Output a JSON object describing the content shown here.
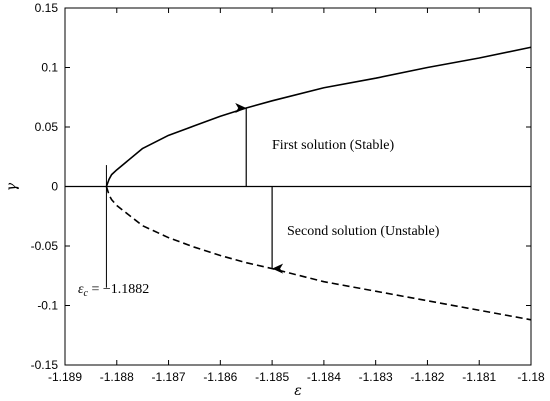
{
  "chart_data": {
    "type": "line",
    "xlabel": "ε",
    "ylabel": "γ",
    "xlim": [
      -1.189,
      -1.18
    ],
    "ylim": [
      -0.15,
      0.15
    ],
    "x_ticks": [
      "-1.189",
      "-1.188",
      "-1.187",
      "-1.186",
      "-1.185",
      "-1.184",
      "-1.183",
      "-1.182",
      "-1.181",
      "-1.18"
    ],
    "y_ticks": [
      "-0.15",
      "-0.1",
      "-0.05",
      "0",
      "0.05",
      "0.1",
      "0.15"
    ],
    "series": [
      {
        "name": "First solution (Stable)",
        "style": "solid",
        "color": "#000000",
        "x": [
          -1.1882,
          -1.18815,
          -1.1881,
          -1.188,
          -1.1875,
          -1.187,
          -1.1865,
          -1.186,
          -1.1855,
          -1.185,
          -1.184,
          -1.183,
          -1.182,
          -1.181,
          -1.18
        ],
        "y": [
          0.0,
          0.006,
          0.01,
          0.014,
          0.032,
          0.043,
          0.051,
          0.059,
          0.066,
          0.072,
          0.083,
          0.091,
          0.1,
          0.108,
          0.117
        ]
      },
      {
        "name": "Second solution (Unstable)",
        "style": "dashed",
        "color": "#000000",
        "x": [
          -1.1882,
          -1.18815,
          -1.1881,
          -1.188,
          -1.1875,
          -1.187,
          -1.1865,
          -1.186,
          -1.1855,
          -1.185,
          -1.184,
          -1.183,
          -1.182,
          -1.181,
          -1.18
        ],
        "y": [
          0.0,
          -0.007,
          -0.011,
          -0.016,
          -0.033,
          -0.043,
          -0.051,
          -0.058,
          -0.064,
          -0.069,
          -0.08,
          -0.088,
          -0.096,
          -0.104,
          -0.112
        ]
      }
    ],
    "zero_line": true,
    "grid": false,
    "critical_point": {
      "x": -1.1882,
      "label_value": "−1.1882"
    },
    "annotations": {
      "stable_label": "First solution (Stable)",
      "unstable_label": "Second solution (Unstable)",
      "critical_prefix": "ε",
      "critical_sub": "c",
      "critical_eq": " = −1.1882"
    },
    "stable_arrow": {
      "x": -1.1855,
      "y_from": 0.0,
      "y_to": 0.066
    },
    "unstable_arrow": {
      "x": -1.185,
      "y_from": 0.0,
      "y_to": -0.069
    },
    "critical_marker": {
      "x": -1.1882,
      "y_from": -0.085,
      "y_to": 0.018
    }
  }
}
